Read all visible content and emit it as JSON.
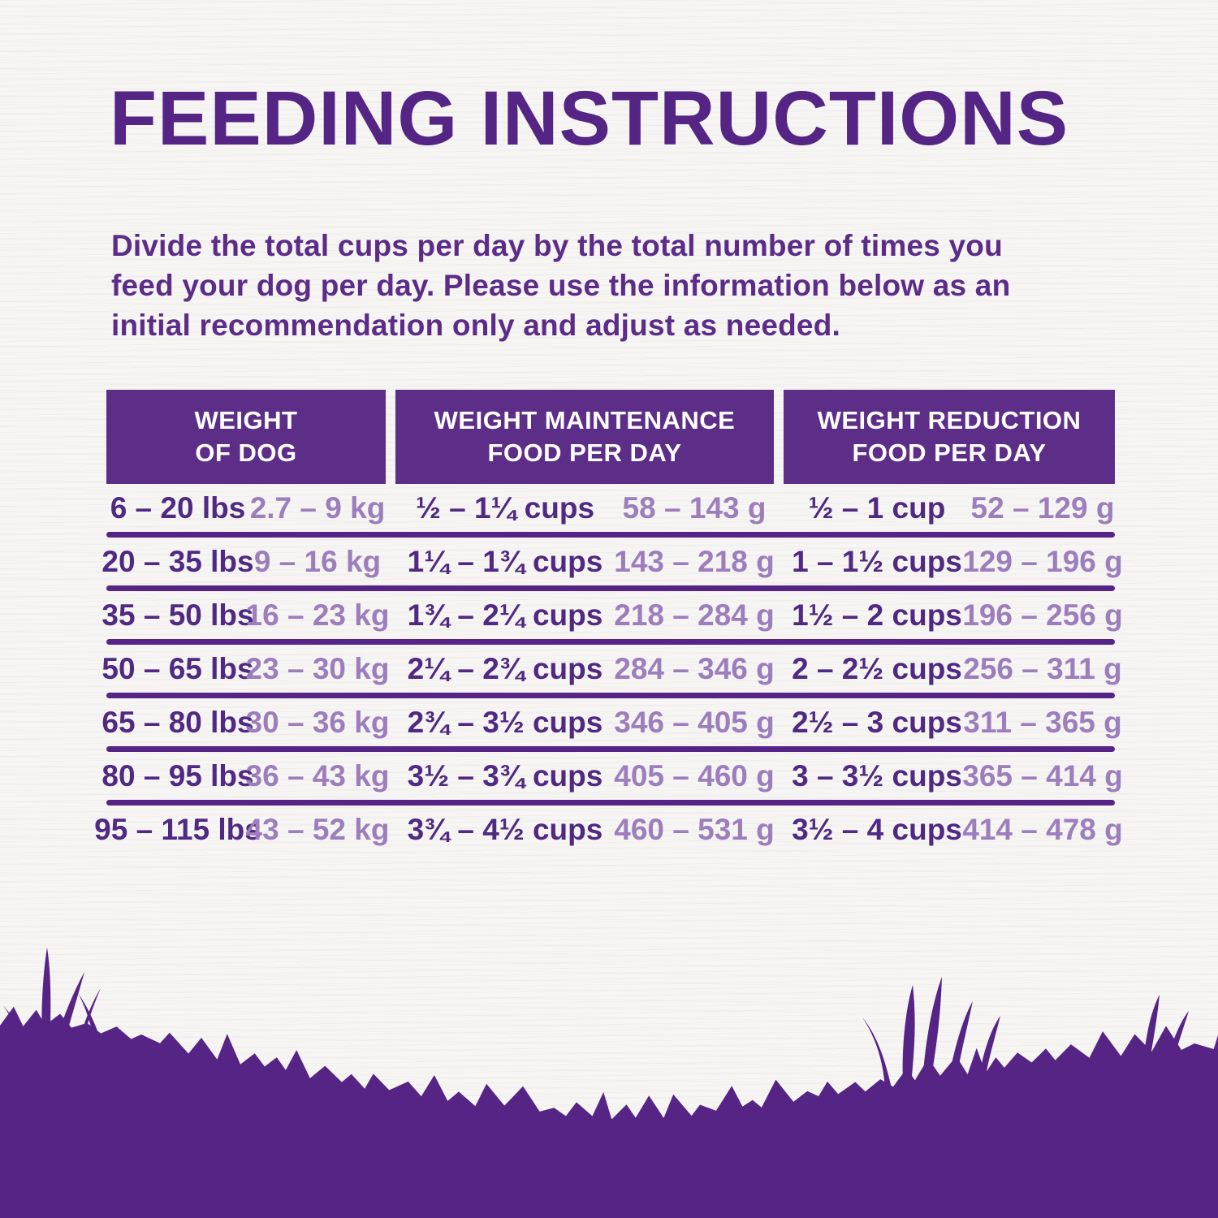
{
  "page": {
    "title": "FEEDING INSTRUCTIONS",
    "intro_lines": [
      "Divide the total cups per day by the total number of times you",
      "feed your dog per day. Please use the information below as an",
      "initial recommendation only and adjust as needed."
    ]
  },
  "colors": {
    "title_purple": "#552586",
    "body_text_purple": "#5b2c88",
    "header_bg_purple": "#5d2e88",
    "header_text_white": "#ffffff",
    "value_dark_purple": "#4f2982",
    "value_light_purple": "#9c7ebd",
    "divider_purple": "#552486",
    "grass_purple": "#552484",
    "background_offwhite": "#f6f5f3"
  },
  "table": {
    "headers": [
      {
        "line1": "WEIGHT",
        "line2": "OF DOG"
      },
      {
        "line1": "WEIGHT MAINTENANCE",
        "line2": "FOOD PER DAY"
      },
      {
        "line1": "WEIGHT REDUCTION",
        "line2": "FOOD PER DAY"
      }
    ],
    "rows": [
      {
        "lbs": "6 – 20 lbs",
        "kg": "2.7 – 9 kg",
        "maintenance_cups": "½ – 1¼ cups",
        "maintenance_grams": "58 – 143 g",
        "reduction_cups": "½ – 1 cup",
        "reduction_grams": "52 – 129 g"
      },
      {
        "lbs": "20 – 35 lbs",
        "kg": "9 – 16 kg",
        "maintenance_cups": "1¼ – 1¾ cups",
        "maintenance_grams": "143 – 218 g",
        "reduction_cups": "1 – 1½ cups",
        "reduction_grams": "129 – 196 g"
      },
      {
        "lbs": "35 – 50 lbs",
        "kg": "16 – 23 kg",
        "maintenance_cups": "1¾ – 2¼ cups",
        "maintenance_grams": "218 – 284 g",
        "reduction_cups": "1½ – 2 cups",
        "reduction_grams": "196 – 256 g"
      },
      {
        "lbs": "50 – 65 lbs",
        "kg": "23 – 30 kg",
        "maintenance_cups": "2¼ – 2¾ cups",
        "maintenance_grams": "284 – 346 g",
        "reduction_cups": "2 – 2½ cups",
        "reduction_grams": "256 – 311 g"
      },
      {
        "lbs": "65 – 80 lbs",
        "kg": "30 – 36 kg",
        "maintenance_cups": "2¾ – 3½ cups",
        "maintenance_grams": "346 – 405 g",
        "reduction_cups": "2½ – 3 cups",
        "reduction_grams": "311 – 365 g"
      },
      {
        "lbs": "80 – 95 lbs",
        "kg": "36 – 43 kg",
        "maintenance_cups": "3½ – 3¾ cups",
        "maintenance_grams": "405 – 460 g",
        "reduction_cups": "3 – 3½ cups",
        "reduction_grams": "365 – 414 g"
      },
      {
        "lbs": "95 – 115 lbs",
        "kg": "43 – 52 kg",
        "maintenance_cups": "3¾ – 4½ cups",
        "maintenance_grams": "460 – 531 g",
        "reduction_cups": "3½ – 4 cups",
        "reduction_grams": "414 – 478 g"
      }
    ]
  }
}
